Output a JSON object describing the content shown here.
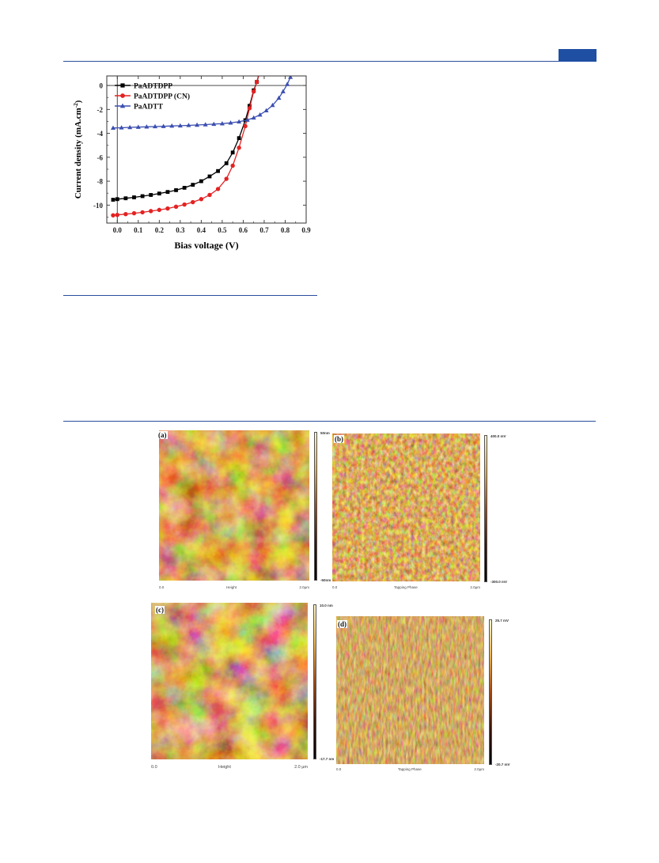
{
  "chart_data": {
    "type": "line",
    "xlabel": "Bias voltage (V)",
    "ylabel": "Current density (mA.cm",
    "ylabel_sup": "-2",
    "ylabel_close": ")",
    "xlim": [
      -0.05,
      0.9
    ],
    "ylim": [
      -11.5,
      0.8
    ],
    "x_ticks": [
      0.0,
      0.1,
      0.2,
      0.3,
      0.4,
      0.5,
      0.6,
      0.7,
      0.8,
      0.9
    ],
    "x_tick_labels": [
      "0.0",
      "0.1",
      "0.2",
      "0.3",
      "0.4",
      "0.5",
      "0.6",
      "0.7",
      "0.8",
      "0.9"
    ],
    "y_ticks": [
      0,
      -2,
      -4,
      -6,
      -8,
      -10
    ],
    "y_tick_labels": [
      "0",
      "-2",
      "-4",
      "-6",
      "-8",
      "-10"
    ],
    "legend_position": "top-left",
    "series": [
      {
        "name": "PaADTDPP",
        "color": "#000000",
        "marker": "square",
        "x": [
          -0.02,
          0.0,
          0.04,
          0.08,
          0.12,
          0.16,
          0.2,
          0.24,
          0.28,
          0.32,
          0.36,
          0.4,
          0.44,
          0.48,
          0.52,
          0.55,
          0.58,
          0.61,
          0.63,
          0.65,
          0.665,
          0.68
        ],
        "y": [
          -9.55,
          -9.5,
          -9.43,
          -9.35,
          -9.25,
          -9.15,
          -9.03,
          -8.9,
          -8.75,
          -8.55,
          -8.3,
          -8.0,
          -7.6,
          -7.15,
          -6.5,
          -5.6,
          -4.4,
          -2.9,
          -1.7,
          -0.4,
          0.3,
          1.2
        ]
      },
      {
        "name": "PaADTDPP (CN)",
        "color": "#e32222",
        "marker": "circle",
        "x": [
          -0.02,
          0.0,
          0.04,
          0.08,
          0.12,
          0.16,
          0.2,
          0.24,
          0.28,
          0.32,
          0.36,
          0.4,
          0.44,
          0.48,
          0.52,
          0.55,
          0.58,
          0.61,
          0.63,
          0.65,
          0.665,
          0.675
        ],
        "y": [
          -10.85,
          -10.82,
          -10.75,
          -10.68,
          -10.6,
          -10.5,
          -10.4,
          -10.28,
          -10.13,
          -9.95,
          -9.75,
          -9.5,
          -9.15,
          -8.65,
          -7.8,
          -6.7,
          -5.2,
          -3.4,
          -1.9,
          -0.5,
          0.3,
          1.0
        ]
      },
      {
        "name": "PaADTT",
        "color": "#3b4fb0",
        "marker": "triangle",
        "x": [
          -0.02,
          0.02,
          0.06,
          0.1,
          0.14,
          0.18,
          0.22,
          0.26,
          0.3,
          0.34,
          0.38,
          0.42,
          0.46,
          0.5,
          0.54,
          0.58,
          0.62,
          0.65,
          0.68,
          0.71,
          0.74,
          0.77,
          0.79,
          0.81,
          0.825
        ],
        "y": [
          -3.55,
          -3.53,
          -3.5,
          -3.48,
          -3.45,
          -3.43,
          -3.41,
          -3.38,
          -3.36,
          -3.33,
          -3.3,
          -3.27,
          -3.23,
          -3.19,
          -3.12,
          -3.03,
          -2.88,
          -2.7,
          -2.45,
          -2.1,
          -1.65,
          -1.05,
          -0.5,
          0.1,
          0.7
        ]
      }
    ]
  },
  "afm_panels": [
    {
      "label": "(a)",
      "scale_top": "50nm",
      "scale_bottom": "-50nm",
      "foot_left": "0.0",
      "foot_mid": "Height",
      "foot_right": "2.0µm"
    },
    {
      "label": "(b)",
      "scale_top": "400.0 mV",
      "scale_bottom": "-300.0 mV",
      "foot_left": "0.0",
      "foot_mid": "Tapping Phase",
      "foot_right": "2.0µm"
    },
    {
      "label": "(c)",
      "scale_top": "10.0 nm",
      "scale_bottom": "-17.7 nm",
      "foot_left": "0.0",
      "foot_mid": "Height",
      "foot_right": "2.0 µm"
    },
    {
      "label": "(d)",
      "scale_top": "25.7 mV",
      "scale_bottom": "-20.7 mV",
      "foot_left": "0.0",
      "foot_mid": "Tapping Phase",
      "foot_right": "2.0µm"
    }
  ]
}
